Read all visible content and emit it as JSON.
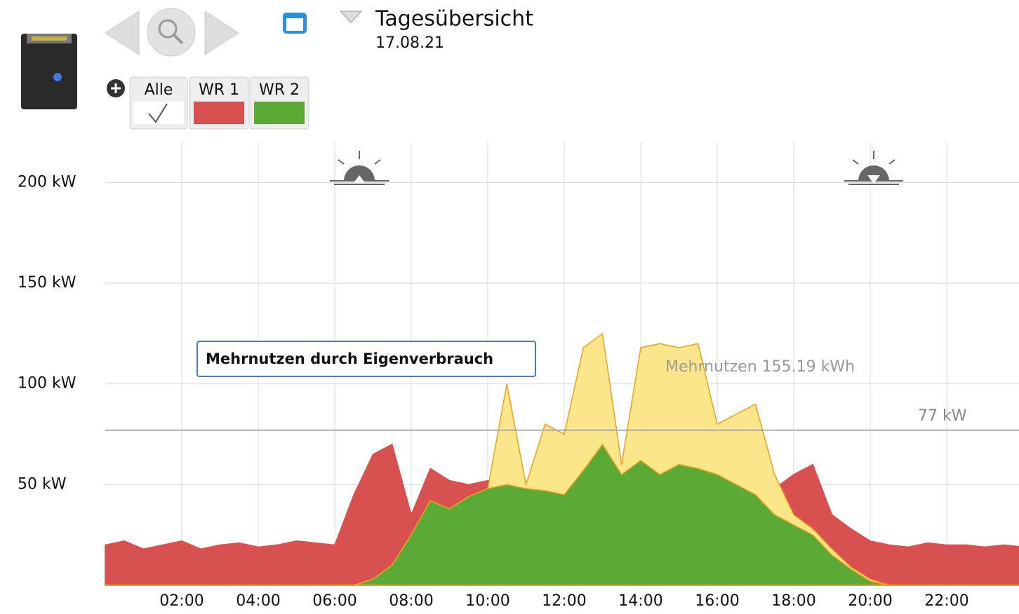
{
  "header": {
    "title": "Tagesübersicht",
    "date": "17.08.21",
    "all_button": "Alle"
  },
  "chart_data": {
    "type": "area",
    "annotation_box": "Mehrnutzen durch Eigenverbrauch",
    "annotation": "Mehrnutzen 155.19 kWh",
    "reference_line": {
      "value": 77,
      "label": "77 kW"
    },
    "x": [
      0,
      0.5,
      1,
      1.5,
      2,
      2.5,
      3,
      3.5,
      4,
      4.5,
      5,
      5.5,
      6,
      6.5,
      7,
      7.5,
      8,
      8.5,
      9,
      9.5,
      10,
      10.5,
      11,
      11.5,
      12,
      12.5,
      13,
      13.5,
      14,
      14.5,
      15,
      15.5,
      16,
      16.5,
      17,
      17.5,
      18,
      18.5,
      19,
      19.5,
      20,
      20.5,
      21,
      21.5,
      22,
      22.5,
      23,
      23.5,
      24
    ],
    "series": [
      {
        "name": "WR 1",
        "color": "#d95050",
        "values": [
          20,
          22,
          18,
          20,
          22,
          18,
          20,
          21,
          19,
          20,
          22,
          21,
          20,
          45,
          65,
          70,
          35,
          58,
          52,
          50,
          52,
          48,
          50,
          48,
          50,
          52,
          50,
          48,
          50,
          52,
          50,
          48,
          50,
          52,
          50,
          48,
          55,
          60,
          35,
          28,
          22,
          20,
          19,
          21,
          20,
          20,
          19,
          20,
          19
        ]
      },
      {
        "color": "#fbe68a",
        "values": [
          0,
          0,
          0,
          0,
          0,
          0,
          0,
          0,
          0,
          0,
          0,
          0,
          0,
          0,
          3,
          10,
          25,
          42,
          38,
          44,
          48,
          100,
          50,
          80,
          75,
          118,
          125,
          60,
          118,
          120,
          118,
          120,
          80,
          85,
          90,
          55,
          35,
          28,
          18,
          9,
          3,
          0,
          0,
          0,
          0,
          0,
          0,
          0,
          0
        ]
      },
      {
        "name": "WR 2",
        "color": "#5aaa35",
        "values": [
          0,
          0,
          0,
          0,
          0,
          0,
          0,
          0,
          0,
          0,
          0,
          0,
          0,
          0,
          3,
          10,
          25,
          42,
          38,
          44,
          48,
          50,
          48,
          47,
          45,
          57,
          70,
          55,
          62,
          55,
          60,
          58,
          55,
          50,
          45,
          35,
          30,
          25,
          15,
          8,
          2,
          0,
          0,
          0,
          0,
          0,
          0,
          0,
          0
        ]
      }
    ],
    "xlim": [
      0,
      24
    ],
    "xticks": [
      {
        "value": 2,
        "label": "02:00"
      },
      {
        "value": 4,
        "label": "04:00"
      },
      {
        "value": 6,
        "label": "06:00"
      },
      {
        "value": 8,
        "label": "08:00"
      },
      {
        "value": 10,
        "label": "10:00"
      },
      {
        "value": 12,
        "label": "12:00"
      },
      {
        "value": 14,
        "label": "14:00"
      },
      {
        "value": 16,
        "label": "16:00"
      },
      {
        "value": 18,
        "label": "18:00"
      },
      {
        "value": 20,
        "label": "20:00"
      },
      {
        "value": 22,
        "label": "22:00"
      }
    ],
    "ylim": [
      0,
      220
    ],
    "yticks": [
      {
        "value": 50,
        "label": "50 kW"
      },
      {
        "value": 100,
        "label": "100 kW"
      },
      {
        "value": 150,
        "label": "150 kW"
      },
      {
        "value": 200,
        "label": "200 kW"
      }
    ],
    "grid": true
  }
}
